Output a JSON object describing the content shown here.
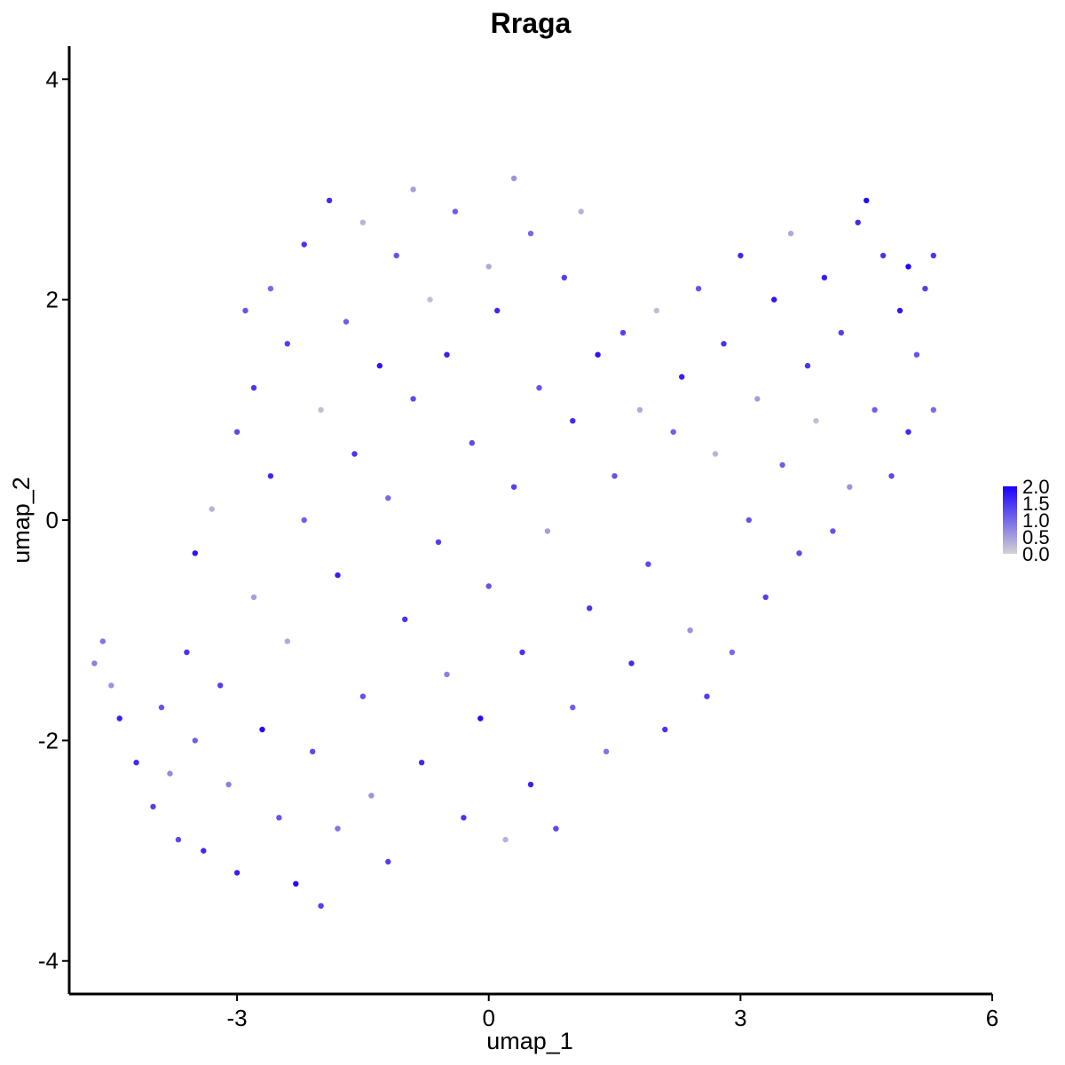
{
  "chart_data": {
    "type": "scatter",
    "title": "Rraga",
    "xlabel": "umap_1",
    "ylabel": "umap_2",
    "xlim": [
      -5.0,
      6.0
    ],
    "ylim": [
      -4.3,
      4.3
    ],
    "x_ticks": [
      -3,
      0,
      3,
      6
    ],
    "x_tick_labels": [
      "-3",
      "0",
      "3",
      "6"
    ],
    "y_ticks": [
      -4,
      -2,
      0,
      2,
      4
    ],
    "y_tick_labels": [
      "-4",
      "-2",
      "0",
      "2",
      "4"
    ],
    "grid": false,
    "legend_position": "right",
    "color_scale": {
      "low": "#d3d3d3",
      "high": "#1a00ff",
      "min": 0.0,
      "max": 2.0,
      "ticks": [
        2.0,
        1.5,
        1.0,
        0.5,
        0.0
      ],
      "tick_labels": [
        "2.0",
        "1.5",
        "1.0",
        "0.5",
        "0.0"
      ]
    },
    "points": [
      {
        "x": -4.7,
        "y": -1.3,
        "v": 0.8
      },
      {
        "x": -4.6,
        "y": -1.1,
        "v": 0.9
      },
      {
        "x": -4.5,
        "y": -1.5,
        "v": 0.6
      },
      {
        "x": -4.4,
        "y": -1.8,
        "v": 1.7
      },
      {
        "x": -4.2,
        "y": -2.2,
        "v": 1.6
      },
      {
        "x": -4.0,
        "y": -2.6,
        "v": 1.4
      },
      {
        "x": -3.9,
        "y": -1.7,
        "v": 1.2
      },
      {
        "x": -3.8,
        "y": -2.3,
        "v": 0.7
      },
      {
        "x": -3.7,
        "y": -2.9,
        "v": 1.3
      },
      {
        "x": -3.6,
        "y": -1.2,
        "v": 1.5
      },
      {
        "x": -3.5,
        "y": -0.3,
        "v": 1.8
      },
      {
        "x": -3.5,
        "y": -2.0,
        "v": 1.1
      },
      {
        "x": -3.4,
        "y": -3.0,
        "v": 1.6
      },
      {
        "x": -3.3,
        "y": 0.1,
        "v": 0.3
      },
      {
        "x": -3.2,
        "y": -1.5,
        "v": 1.4
      },
      {
        "x": -3.1,
        "y": -2.4,
        "v": 0.8
      },
      {
        "x": -3.0,
        "y": 0.8,
        "v": 1.3
      },
      {
        "x": -3.0,
        "y": -3.2,
        "v": 1.7
      },
      {
        "x": -2.9,
        "y": 1.9,
        "v": 1.2
      },
      {
        "x": -2.8,
        "y": 1.2,
        "v": 1.5
      },
      {
        "x": -2.8,
        "y": -0.7,
        "v": 0.5
      },
      {
        "x": -2.7,
        "y": -1.9,
        "v": 1.9
      },
      {
        "x": -2.6,
        "y": 2.1,
        "v": 1.0
      },
      {
        "x": -2.6,
        "y": 0.4,
        "v": 1.6
      },
      {
        "x": -2.5,
        "y": -2.7,
        "v": 1.2
      },
      {
        "x": -2.4,
        "y": 1.6,
        "v": 1.4
      },
      {
        "x": -2.4,
        "y": -1.1,
        "v": 0.4
      },
      {
        "x": -2.3,
        "y": -3.3,
        "v": 1.9
      },
      {
        "x": -2.2,
        "y": 2.5,
        "v": 1.5
      },
      {
        "x": -2.2,
        "y": 0.0,
        "v": 1.1
      },
      {
        "x": -2.1,
        "y": -2.1,
        "v": 1.3
      },
      {
        "x": -2.0,
        "y": 1.0,
        "v": 0.2
      },
      {
        "x": -2.0,
        "y": -3.5,
        "v": 1.4
      },
      {
        "x": -1.9,
        "y": 2.9,
        "v": 1.6
      },
      {
        "x": -1.8,
        "y": -0.5,
        "v": 1.7
      },
      {
        "x": -1.8,
        "y": -2.8,
        "v": 0.9
      },
      {
        "x": -1.7,
        "y": 1.8,
        "v": 1.1
      },
      {
        "x": -1.6,
        "y": 0.6,
        "v": 1.5
      },
      {
        "x": -1.5,
        "y": 2.7,
        "v": 0.3
      },
      {
        "x": -1.5,
        "y": -1.6,
        "v": 1.2
      },
      {
        "x": -1.4,
        "y": -2.5,
        "v": 0.6
      },
      {
        "x": -1.3,
        "y": 1.4,
        "v": 1.8
      },
      {
        "x": -1.2,
        "y": 0.2,
        "v": 1.0
      },
      {
        "x": -1.2,
        "y": -3.1,
        "v": 1.4
      },
      {
        "x": -1.1,
        "y": 2.4,
        "v": 1.2
      },
      {
        "x": -1.0,
        "y": -0.9,
        "v": 1.5
      },
      {
        "x": -0.9,
        "y": 3.0,
        "v": 0.5
      },
      {
        "x": -0.9,
        "y": 1.1,
        "v": 1.3
      },
      {
        "x": -0.8,
        "y": -2.2,
        "v": 1.6
      },
      {
        "x": -0.7,
        "y": 2.0,
        "v": 0.2
      },
      {
        "x": -0.6,
        "y": -0.2,
        "v": 1.4
      },
      {
        "x": -0.5,
        "y": 1.5,
        "v": 1.7
      },
      {
        "x": -0.5,
        "y": -1.4,
        "v": 0.8
      },
      {
        "x": -0.4,
        "y": 2.8,
        "v": 1.1
      },
      {
        "x": -0.3,
        "y": -2.7,
        "v": 1.5
      },
      {
        "x": -0.2,
        "y": 0.7,
        "v": 1.3
      },
      {
        "x": -0.1,
        "y": -1.8,
        "v": 1.9
      },
      {
        "x": 0.0,
        "y": 2.3,
        "v": 0.4
      },
      {
        "x": 0.0,
        "y": -0.6,
        "v": 1.2
      },
      {
        "x": 0.1,
        "y": 1.9,
        "v": 1.6
      },
      {
        "x": 0.2,
        "y": -2.9,
        "v": 0.3
      },
      {
        "x": 0.3,
        "y": 0.3,
        "v": 1.4
      },
      {
        "x": 0.3,
        "y": 3.1,
        "v": 0.6
      },
      {
        "x": 0.4,
        "y": -1.2,
        "v": 1.5
      },
      {
        "x": 0.5,
        "y": 2.6,
        "v": 1.0
      },
      {
        "x": 0.5,
        "y": -2.4,
        "v": 1.7
      },
      {
        "x": 0.6,
        "y": 1.2,
        "v": 1.2
      },
      {
        "x": 0.7,
        "y": -0.1,
        "v": 0.5
      },
      {
        "x": 0.8,
        "y": -2.8,
        "v": 1.3
      },
      {
        "x": 0.9,
        "y": 2.2,
        "v": 1.4
      },
      {
        "x": 1.0,
        "y": 0.9,
        "v": 1.6
      },
      {
        "x": 1.0,
        "y": -1.7,
        "v": 1.1
      },
      {
        "x": 1.1,
        "y": 2.8,
        "v": 0.3
      },
      {
        "x": 1.2,
        "y": -0.8,
        "v": 1.5
      },
      {
        "x": 1.3,
        "y": 1.5,
        "v": 1.8
      },
      {
        "x": 1.4,
        "y": -2.1,
        "v": 0.9
      },
      {
        "x": 1.5,
        "y": 0.4,
        "v": 1.2
      },
      {
        "x": 1.6,
        "y": 1.7,
        "v": 1.4
      },
      {
        "x": 1.7,
        "y": -1.3,
        "v": 1.6
      },
      {
        "x": 1.8,
        "y": 1.0,
        "v": 0.4
      },
      {
        "x": 1.9,
        "y": -0.4,
        "v": 1.3
      },
      {
        "x": 2.0,
        "y": 1.9,
        "v": 0.2
      },
      {
        "x": 2.1,
        "y": -1.9,
        "v": 1.5
      },
      {
        "x": 2.2,
        "y": 0.8,
        "v": 1.1
      },
      {
        "x": 2.3,
        "y": 1.3,
        "v": 1.7
      },
      {
        "x": 2.4,
        "y": -1.0,
        "v": 0.6
      },
      {
        "x": 2.5,
        "y": 2.1,
        "v": 1.2
      },
      {
        "x": 2.6,
        "y": -1.6,
        "v": 1.4
      },
      {
        "x": 2.7,
        "y": 0.6,
        "v": 0.3
      },
      {
        "x": 2.8,
        "y": 1.6,
        "v": 1.5
      },
      {
        "x": 2.9,
        "y": -1.2,
        "v": 1.0
      },
      {
        "x": 3.0,
        "y": 2.4,
        "v": 1.6
      },
      {
        "x": 3.1,
        "y": 0.0,
        "v": 1.2
      },
      {
        "x": 3.2,
        "y": 1.1,
        "v": 0.5
      },
      {
        "x": 3.3,
        "y": -0.7,
        "v": 1.4
      },
      {
        "x": 3.4,
        "y": 2.0,
        "v": 1.8
      },
      {
        "x": 3.5,
        "y": 0.5,
        "v": 1.1
      },
      {
        "x": 3.6,
        "y": 2.6,
        "v": 0.4
      },
      {
        "x": 3.7,
        "y": -0.3,
        "v": 1.3
      },
      {
        "x": 3.8,
        "y": 1.4,
        "v": 1.5
      },
      {
        "x": 3.9,
        "y": 0.9,
        "v": 0.2
      },
      {
        "x": 4.0,
        "y": 2.2,
        "v": 1.7
      },
      {
        "x": 4.1,
        "y": -0.1,
        "v": 1.2
      },
      {
        "x": 4.2,
        "y": 1.7,
        "v": 1.4
      },
      {
        "x": 4.3,
        "y": 0.3,
        "v": 0.6
      },
      {
        "x": 4.4,
        "y": 2.7,
        "v": 1.6
      },
      {
        "x": 4.5,
        "y": 2.9,
        "v": 1.9
      },
      {
        "x": 4.6,
        "y": 1.0,
        "v": 1.1
      },
      {
        "x": 4.7,
        "y": 2.4,
        "v": 1.5
      },
      {
        "x": 4.8,
        "y": 0.4,
        "v": 1.3
      },
      {
        "x": 4.9,
        "y": 1.9,
        "v": 1.8
      },
      {
        "x": 5.0,
        "y": 2.3,
        "v": 2.0
      },
      {
        "x": 5.0,
        "y": 0.8,
        "v": 1.6
      },
      {
        "x": 5.1,
        "y": 1.5,
        "v": 1.2
      },
      {
        "x": 5.2,
        "y": 2.1,
        "v": 1.4
      },
      {
        "x": 5.3,
        "y": 1.0,
        "v": 1.0
      },
      {
        "x": 5.3,
        "y": 2.4,
        "v": 1.5
      }
    ]
  }
}
